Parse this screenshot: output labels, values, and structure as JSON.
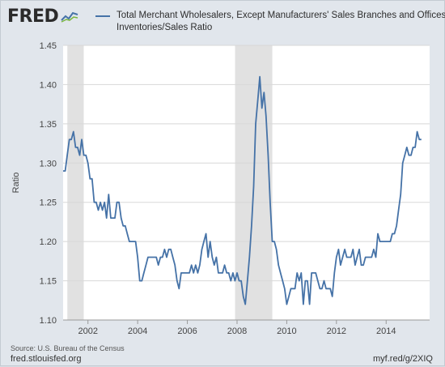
{
  "branding": {
    "logo": "FRED"
  },
  "legend": {
    "line1": "Total Merchant Wholesalers, Except Manufacturers' Sales Branches and Offices",
    "line2": "Inventories/Sales Ratio"
  },
  "footer": {
    "source": "Source: U.S. Bureau of the Census",
    "site": "fred.stlouisfed.org",
    "shortlink": "myf.red/g/2XIQ"
  },
  "colors": {
    "line": "#4572a7",
    "recession": "#e1e1e1",
    "plot_bg": "#ffffff",
    "grid": "#d8d8d8"
  },
  "chart_data": {
    "type": "line",
    "ylabel": "Ratio",
    "xlabel": "",
    "ylim": [
      1.1,
      1.45
    ],
    "xlim": [
      2001.0,
      2015.75
    ],
    "yticks": [
      "1.10",
      "1.15",
      "1.20",
      "1.25",
      "1.30",
      "1.35",
      "1.40",
      "1.45"
    ],
    "xticks": [
      "2002",
      "2004",
      "2006",
      "2008",
      "2010",
      "2012",
      "2014"
    ],
    "grid": true,
    "legend_position": "top",
    "recessions": [
      [
        2001.17,
        2001.83
      ],
      [
        2007.92,
        2009.42
      ]
    ],
    "series": [
      {
        "start": "2001-01",
        "frequency": "monthly",
        "values": [
          1.29,
          1.29,
          1.31,
          1.33,
          1.33,
          1.34,
          1.32,
          1.32,
          1.31,
          1.33,
          1.31,
          1.31,
          1.3,
          1.28,
          1.28,
          1.25,
          1.25,
          1.24,
          1.25,
          1.24,
          1.25,
          1.23,
          1.26,
          1.23,
          1.23,
          1.23,
          1.25,
          1.25,
          1.23,
          1.22,
          1.22,
          1.21,
          1.2,
          1.2,
          1.2,
          1.2,
          1.18,
          1.15,
          1.15,
          1.16,
          1.17,
          1.18,
          1.18,
          1.18,
          1.18,
          1.18,
          1.17,
          1.18,
          1.18,
          1.19,
          1.18,
          1.19,
          1.19,
          1.18,
          1.17,
          1.15,
          1.14,
          1.16,
          1.16,
          1.16,
          1.16,
          1.16,
          1.17,
          1.16,
          1.17,
          1.16,
          1.17,
          1.19,
          1.2,
          1.21,
          1.18,
          1.2,
          1.18,
          1.17,
          1.18,
          1.16,
          1.16,
          1.16,
          1.17,
          1.16,
          1.16,
          1.15,
          1.16,
          1.15,
          1.16,
          1.15,
          1.15,
          1.13,
          1.12,
          1.15,
          1.18,
          1.22,
          1.27,
          1.35,
          1.38,
          1.41,
          1.37,
          1.39,
          1.36,
          1.31,
          1.25,
          1.2,
          1.2,
          1.19,
          1.17,
          1.16,
          1.15,
          1.14,
          1.12,
          1.13,
          1.14,
          1.14,
          1.14,
          1.16,
          1.15,
          1.16,
          1.12,
          1.15,
          1.15,
          1.12,
          1.16,
          1.16,
          1.16,
          1.15,
          1.14,
          1.14,
          1.15,
          1.14,
          1.14,
          1.14,
          1.13,
          1.16,
          1.18,
          1.19,
          1.17,
          1.18,
          1.19,
          1.18,
          1.18,
          1.18,
          1.19,
          1.17,
          1.18,
          1.19,
          1.17,
          1.17,
          1.18,
          1.18,
          1.18,
          1.18,
          1.19,
          1.18,
          1.21,
          1.2,
          1.2,
          1.2,
          1.2,
          1.2,
          1.2,
          1.21,
          1.21,
          1.22,
          1.24,
          1.26,
          1.3,
          1.31,
          1.32,
          1.31,
          1.31,
          1.32,
          1.32,
          1.34,
          1.33,
          1.33
        ]
      }
    ]
  }
}
